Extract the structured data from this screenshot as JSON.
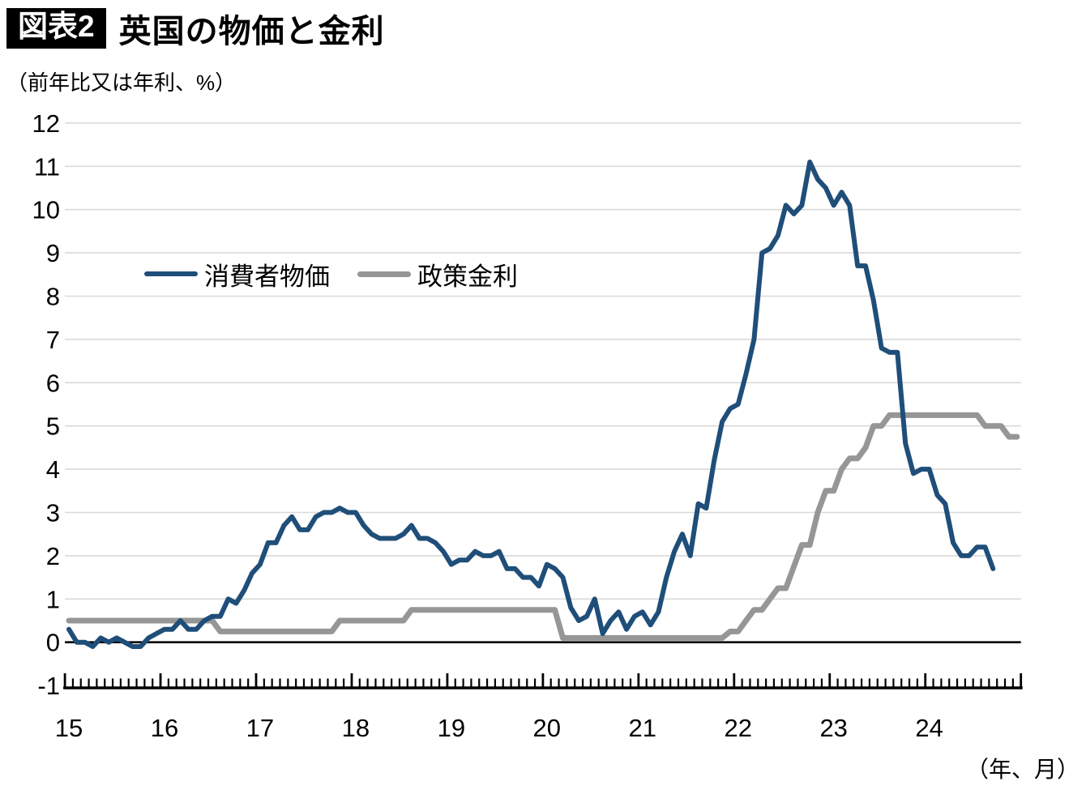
{
  "header": {
    "tag": "図表2",
    "title": "英国の物価と金利",
    "unit_note": "（前年比又は年利、%）"
  },
  "footer": {
    "axis_note": "（年、月）"
  },
  "legend": {
    "items": [
      {
        "label": "消費者物価"
      },
      {
        "label": "政策金利"
      }
    ]
  },
  "chart_data": {
    "type": "line",
    "title": "英国の物価と金利",
    "unit_label": "前年比又は年利、%",
    "x_unit_label": "年、月",
    "x_start": "2015-01",
    "x_frequency": "monthly",
    "xtick_labels": [
      "15",
      "16",
      "17",
      "18",
      "19",
      "20",
      "21",
      "22",
      "23",
      "24"
    ],
    "ylim": [
      -1,
      12
    ],
    "ytick_step": 1,
    "grid": true,
    "zero_line": true,
    "legend_position": "inside-top-left",
    "series": [
      {
        "name": "消費者物価",
        "color": "#1F4E79",
        "stroke_width": 6,
        "start": "2015-01",
        "end": "2024-09",
        "values": [
          0.3,
          0.0,
          0.0,
          -0.1,
          0.1,
          0.0,
          0.1,
          0.0,
          -0.1,
          -0.1,
          0.1,
          0.2,
          0.3,
          0.3,
          0.5,
          0.3,
          0.3,
          0.5,
          0.6,
          0.6,
          1.0,
          0.9,
          1.2,
          1.6,
          1.8,
          2.3,
          2.3,
          2.7,
          2.9,
          2.6,
          2.6,
          2.9,
          3.0,
          3.0,
          3.1,
          3.0,
          3.0,
          2.7,
          2.5,
          2.4,
          2.4,
          2.4,
          2.5,
          2.7,
          2.4,
          2.4,
          2.3,
          2.1,
          1.8,
          1.9,
          1.9,
          2.1,
          2.0,
          2.0,
          2.1,
          1.7,
          1.7,
          1.5,
          1.5,
          1.3,
          1.8,
          1.7,
          1.5,
          0.8,
          0.5,
          0.6,
          1.0,
          0.2,
          0.5,
          0.7,
          0.3,
          0.6,
          0.7,
          0.4,
          0.7,
          1.5,
          2.1,
          2.5,
          2.0,
          3.2,
          3.1,
          4.2,
          5.1,
          5.4,
          5.5,
          6.2,
          7.0,
          9.0,
          9.1,
          9.4,
          10.1,
          9.9,
          10.1,
          11.1,
          10.7,
          10.5,
          10.1,
          10.4,
          10.1,
          8.7,
          8.7,
          7.9,
          6.8,
          6.7,
          6.7,
          4.6,
          3.9,
          4.0,
          4.0,
          3.4,
          3.2,
          2.3,
          2.0,
          2.0,
          2.2,
          2.2,
          1.7
        ]
      },
      {
        "name": "政策金利",
        "color": "#969696",
        "stroke_width": 7,
        "start": "2015-01",
        "end": "2024-12",
        "values": [
          0.5,
          0.5,
          0.5,
          0.5,
          0.5,
          0.5,
          0.5,
          0.5,
          0.5,
          0.5,
          0.5,
          0.5,
          0.5,
          0.5,
          0.5,
          0.5,
          0.5,
          0.5,
          0.5,
          0.25,
          0.25,
          0.25,
          0.25,
          0.25,
          0.25,
          0.25,
          0.25,
          0.25,
          0.25,
          0.25,
          0.25,
          0.25,
          0.25,
          0.25,
          0.5,
          0.5,
          0.5,
          0.5,
          0.5,
          0.5,
          0.5,
          0.5,
          0.5,
          0.75,
          0.75,
          0.75,
          0.75,
          0.75,
          0.75,
          0.75,
          0.75,
          0.75,
          0.75,
          0.75,
          0.75,
          0.75,
          0.75,
          0.75,
          0.75,
          0.75,
          0.75,
          0.75,
          0.1,
          0.1,
          0.1,
          0.1,
          0.1,
          0.1,
          0.1,
          0.1,
          0.1,
          0.1,
          0.1,
          0.1,
          0.1,
          0.1,
          0.1,
          0.1,
          0.1,
          0.1,
          0.1,
          0.1,
          0.1,
          0.25,
          0.25,
          0.5,
          0.75,
          0.75,
          1.0,
          1.25,
          1.25,
          1.75,
          2.25,
          2.25,
          3.0,
          3.5,
          3.5,
          4.0,
          4.25,
          4.25,
          4.5,
          5.0,
          5.0,
          5.25,
          5.25,
          5.25,
          5.25,
          5.25,
          5.25,
          5.25,
          5.25,
          5.25,
          5.25,
          5.25,
          5.25,
          5.0,
          5.0,
          5.0,
          4.75,
          4.75
        ]
      }
    ]
  }
}
